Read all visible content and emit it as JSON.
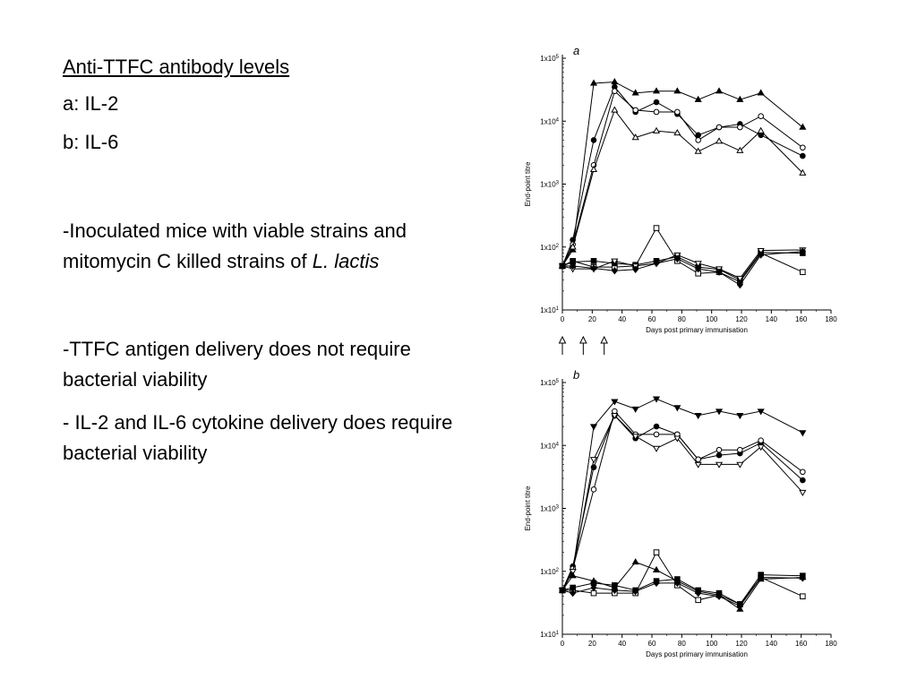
{
  "text": {
    "title": "Anti-TTFC antibody levels",
    "line_a": "a: IL-2",
    "line_b": "b: IL-6",
    "bullet1_main": "-Inoculated mice with viable strains and mitomycin C killed strains of ",
    "bullet1_italic": "L. lactis",
    "bullet2": "-TTFC antigen delivery does not require  bacterial viability",
    "bullet3": "- IL-2 and IL-6 cytokine delivery does require bacterial viability"
  },
  "arrows_days": [
    0,
    14,
    28
  ],
  "chart_data": [
    {
      "type": "line",
      "panel_label": "a",
      "ylabel": "End-point titre",
      "xlabel": "Days post primary immunisation",
      "xlim": [
        0,
        180
      ],
      "xticks": [
        0,
        20,
        40,
        60,
        80,
        100,
        120,
        140,
        160,
        180
      ],
      "ylim": [
        10,
        100000
      ],
      "yscale": "log",
      "yticks": [
        {
          "value": 10,
          "label": "1x10",
          "exp": "1"
        },
        {
          "value": 100,
          "label": "1x10",
          "exp": "2"
        },
        {
          "value": 1000,
          "label": "1x10",
          "exp": "3"
        },
        {
          "value": 10000,
          "label": "1x10",
          "exp": "4"
        },
        {
          "value": 100000,
          "label": "1x10",
          "exp": "5"
        }
      ],
      "x": [
        0,
        7,
        21,
        35,
        49,
        63,
        77,
        91,
        105,
        119,
        133,
        161
      ],
      "series": [
        {
          "marker": "triangle-filled",
          "values": [
            50,
            90,
            40000,
            42000,
            28000,
            30000,
            30000,
            22000,
            30000,
            22000,
            28000,
            8000
          ]
        },
        {
          "marker": "circle-filled",
          "values": [
            50,
            130,
            5000,
            35000,
            14000,
            20000,
            13000,
            6000,
            8000,
            9000,
            6000,
            2800
          ]
        },
        {
          "marker": "circle-open",
          "values": [
            50,
            110,
            2000,
            30000,
            15000,
            14000,
            14000,
            5000,
            8000,
            8000,
            12000,
            3800
          ]
        },
        {
          "marker": "triangle-open",
          "values": [
            50,
            100,
            1700,
            15000,
            5500,
            7000,
            6500,
            3300,
            4800,
            3400,
            7000,
            1500
          ]
        },
        {
          "marker": "square-open",
          "values": [
            50,
            60,
            48,
            48,
            50,
            200,
            60,
            38,
            40,
            28,
            80,
            40
          ]
        },
        {
          "marker": "square-filled",
          "values": [
            50,
            58,
            60,
            55,
            52,
            60,
            70,
            48,
            44,
            30,
            82,
            80
          ]
        },
        {
          "marker": "triangle-open-down",
          "values": [
            50,
            45,
            45,
            60,
            50,
            55,
            75,
            55,
            45,
            32,
            88,
            90
          ]
        },
        {
          "marker": "diamond-filled",
          "values": [
            50,
            50,
            46,
            42,
            44,
            55,
            65,
            45,
            40,
            25,
            75,
            85
          ]
        }
      ]
    },
    {
      "type": "line",
      "panel_label": "b",
      "ylabel": "End-point titre",
      "xlabel": "Days post primary immunisation",
      "xlim": [
        0,
        180
      ],
      "xticks": [
        0,
        20,
        40,
        60,
        80,
        100,
        120,
        140,
        160,
        180
      ],
      "ylim": [
        10,
        100000
      ],
      "yscale": "log",
      "yticks": [
        {
          "value": 10,
          "label": "1x10",
          "exp": "1"
        },
        {
          "value": 100,
          "label": "1x10",
          "exp": "2"
        },
        {
          "value": 1000,
          "label": "1x10",
          "exp": "3"
        },
        {
          "value": 10000,
          "label": "1x10",
          "exp": "4"
        },
        {
          "value": 100000,
          "label": "1x10",
          "exp": "5"
        }
      ],
      "x": [
        0,
        7,
        21,
        35,
        49,
        63,
        77,
        91,
        105,
        119,
        133,
        161
      ],
      "series": [
        {
          "marker": "triangle-filled-down",
          "values": [
            50,
            100,
            20000,
            50000,
            38000,
            55000,
            40000,
            30000,
            35000,
            30000,
            35000,
            16000
          ]
        },
        {
          "marker": "circle-filled",
          "values": [
            50,
            120,
            4500,
            30000,
            13000,
            20000,
            15000,
            6000,
            7000,
            7500,
            11000,
            2800
          ]
        },
        {
          "marker": "circle-open",
          "values": [
            50,
            110,
            2000,
            35000,
            15000,
            15000,
            15000,
            6000,
            8500,
            8500,
            12000,
            3800
          ]
        },
        {
          "marker": "triangle-open-down",
          "values": [
            50,
            100,
            6000,
            30000,
            14000,
            9000,
            13000,
            5000,
            5000,
            5000,
            9500,
            1800
          ]
        },
        {
          "marker": "square-open",
          "values": [
            50,
            50,
            45,
            45,
            45,
            200,
            60,
            35,
            42,
            30,
            80,
            40
          ]
        },
        {
          "marker": "square-filled",
          "values": [
            50,
            55,
            65,
            60,
            50,
            70,
            75,
            50,
            45,
            30,
            88,
            85
          ]
        },
        {
          "marker": "triangle-filled",
          "values": [
            50,
            85,
            70,
            55,
            140,
            105,
            70,
            48,
            42,
            25,
            75,
            80
          ]
        },
        {
          "marker": "diamond-filled",
          "values": [
            50,
            45,
            55,
            50,
            48,
            65,
            65,
            45,
            40,
            28,
            80,
            78
          ]
        }
      ]
    }
  ]
}
